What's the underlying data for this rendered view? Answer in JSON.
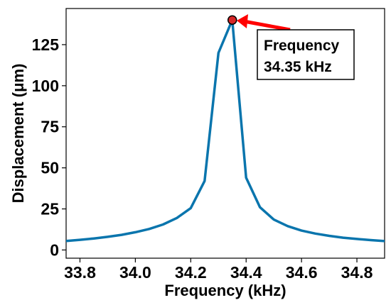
{
  "chart_data": {
    "type": "line",
    "xlabel": "Frequency (kHz)",
    "ylabel": "Displacement (μm)",
    "xlim": [
      33.75,
      34.9
    ],
    "ylim": [
      -5,
      147
    ],
    "x_ticks": [
      "33.8",
      "34.0",
      "34.2",
      "34.4",
      "34.6",
      "34.8"
    ],
    "x_tick_values": [
      33.8,
      34.0,
      34.2,
      34.4,
      34.6,
      34.8
    ],
    "y_ticks": [
      "0",
      "25",
      "50",
      "75",
      "100",
      "125"
    ],
    "y_tick_values": [
      0,
      25,
      50,
      75,
      100,
      125
    ],
    "grid": false,
    "legend": "none",
    "series": [
      {
        "color": "#0a75ad",
        "x": [
          33.75,
          33.8,
          33.85,
          33.9,
          33.95,
          34.0,
          34.05,
          34.1,
          34.15,
          34.2,
          34.25,
          34.3,
          34.35,
          34.4,
          34.45,
          34.5,
          34.55,
          34.6,
          34.65,
          34.7,
          34.75,
          34.8,
          34.85,
          34.9
        ],
        "y": [
          5.5,
          6.2,
          7.0,
          8.0,
          9.2,
          10.8,
          12.8,
          15.5,
          19.5,
          25.5,
          42,
          120,
          140,
          44,
          26,
          18.5,
          14.5,
          11.8,
          10.0,
          8.6,
          7.5,
          6.7,
          6.0,
          5.4
        ]
      }
    ],
    "peak": {
      "x": 34.35,
      "y": 140
    },
    "annotation": {
      "line1": "Frequency",
      "line2": "34.35 kHz",
      "marker_color": "#d62728",
      "arrow_color": "#ff0000"
    }
  }
}
